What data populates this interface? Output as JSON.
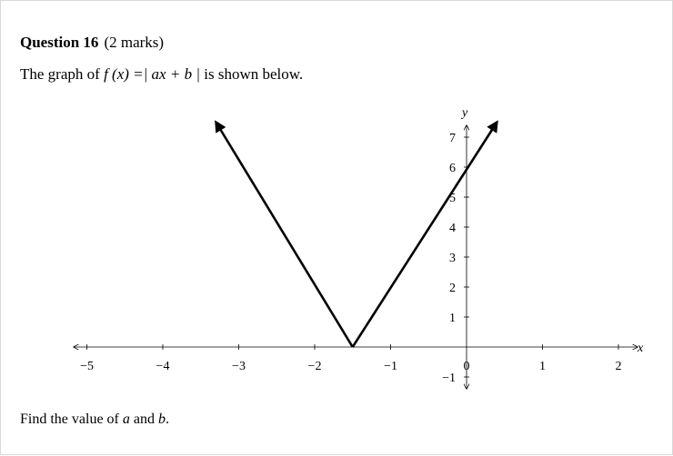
{
  "question": {
    "number_label": "Question 16",
    "marks_label": "(2 marks)"
  },
  "stem": {
    "prefix": "The graph of",
    "function": "f (x) =| ax + b |",
    "suffix": "is shown below."
  },
  "prompt": {
    "text_before": "Find the value of ",
    "var_a": "a",
    "text_and": " and ",
    "var_b": "b",
    "text_end": "."
  },
  "chart_data": {
    "type": "line",
    "title": "",
    "xlabel": "x",
    "ylabel": "y",
    "xlim": [
      -5,
      2
    ],
    "ylim": [
      -1,
      7
    ],
    "x_ticks": [
      -5,
      -4,
      -3,
      -2,
      -1,
      0,
      1,
      2
    ],
    "x_tick_labels": [
      "−5",
      "−4",
      "−3",
      "−2",
      "−1",
      "0",
      "1",
      "2"
    ],
    "y_ticks": [
      -1,
      1,
      2,
      3,
      4,
      5,
      6,
      7
    ],
    "y_tick_labels": [
      "−1",
      "1",
      "2",
      "3",
      "4",
      "5",
      "6",
      "7"
    ],
    "series": [
      {
        "points": [
          [
            -3.3,
            7.5
          ],
          [
            -1.5,
            0
          ],
          [
            0.4,
            7.5
          ]
        ]
      }
    ],
    "vertex": [
      -1.5,
      0
    ],
    "y_intercept": [
      0,
      6
    ],
    "line_color": "#000000"
  }
}
